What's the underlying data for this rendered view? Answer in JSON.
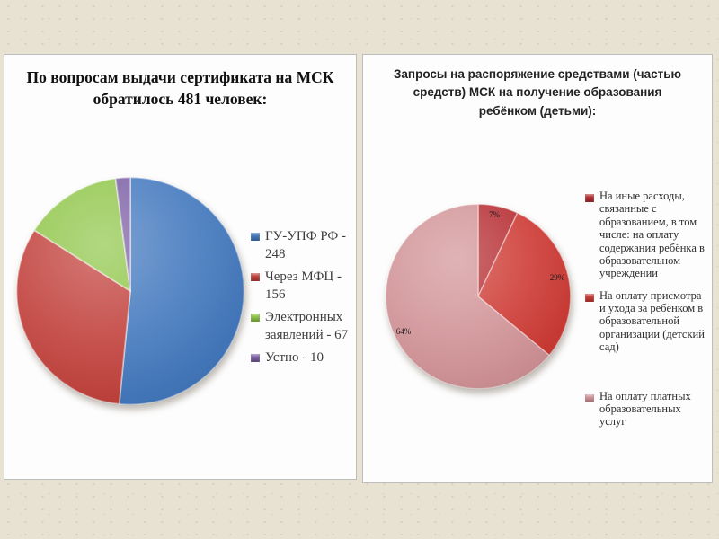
{
  "page": {
    "background_color": "#e8e2d3",
    "panel_border_color": "#bdbdbd"
  },
  "chart_data": [
    {
      "type": "pie",
      "title": "По вопросам  выдачи сертификата на МСК обратилось 481 человек:",
      "total": 481,
      "units": "человек",
      "legend_position": "right",
      "slices": [
        {
          "label": "ГУ-УПФ РФ - 248",
          "name": "ГУ-УПФ РФ",
          "value": 248,
          "color": "#4479BE"
        },
        {
          "label": "Через МФЦ - 156",
          "name": "Через МФЦ",
          "value": 156,
          "color": "#C2423D"
        },
        {
          "label": "Электронных заявлений - 67",
          "name": "Электронных заявлений",
          "value": 67,
          "color": "#90C64A"
        },
        {
          "label": "Устно - 10",
          "name": "Устно",
          "value": 10,
          "color": "#7C5FA5"
        }
      ]
    },
    {
      "type": "pie",
      "title": "Запросы на распоряжение средствами (частью средств) МСК на получение образования ребёнком (детьми):",
      "units": "percent",
      "legend_position": "right",
      "slices": [
        {
          "label": "На иные расходы, связанные с образованием, в том числе: на оплату содержания ребёнка в образовательном учреждении",
          "value": 7,
          "pct_label": "7%",
          "color": "#B62E33"
        },
        {
          "label": "На оплату присмотра и ухода за ребёнком в образовательной организации (детский сад)",
          "value": 29,
          "pct_label": "29%",
          "color": "#CE3B35"
        },
        {
          "label": "На оплату платных образовательных услуг",
          "value": 64,
          "pct_label": "64%",
          "color": "#D19397"
        }
      ]
    }
  ]
}
